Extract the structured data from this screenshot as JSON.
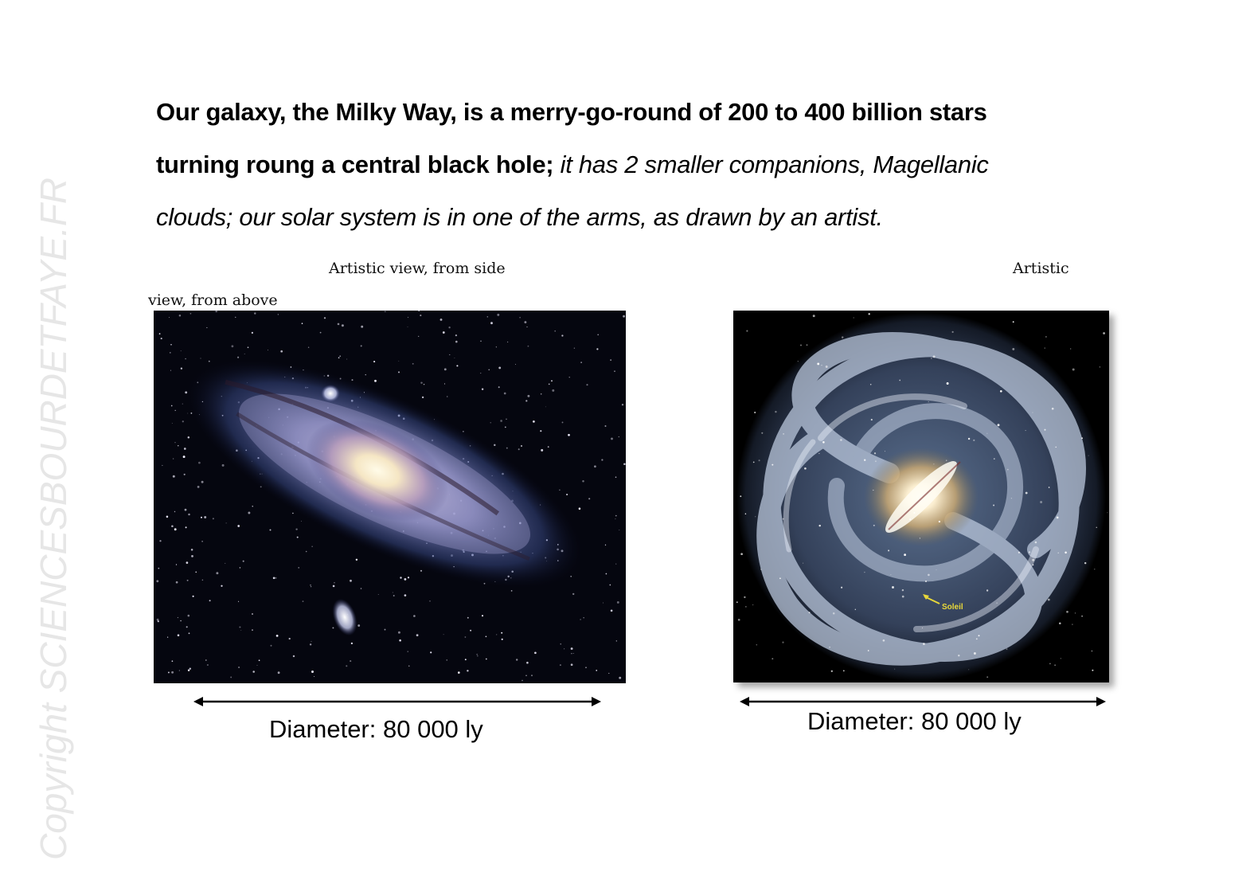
{
  "watermark": "Copyright SCIENCESBOURDETFAYE.FR",
  "intro": {
    "bold": "Our galaxy, the Milky Way, is a merry-go-round of  200 to 400 billion stars turning roung a central black hole;",
    "italic": " it has 2 smaller companions, Magellanic clouds; our solar system is in one of the arms, as drawn by an artist."
  },
  "captions": {
    "side": "Artistic view, from side",
    "above_part1": "Artistic",
    "above_part2": "view, from above"
  },
  "left_figure": {
    "diameter": "Diameter: 80 000 ly"
  },
  "right_figure": {
    "diameter": "Diameter: 80 000 ly",
    "sun_label": "Soleil"
  },
  "colors": {
    "space": "#05060f",
    "sun_marker": "#e8d83a"
  }
}
